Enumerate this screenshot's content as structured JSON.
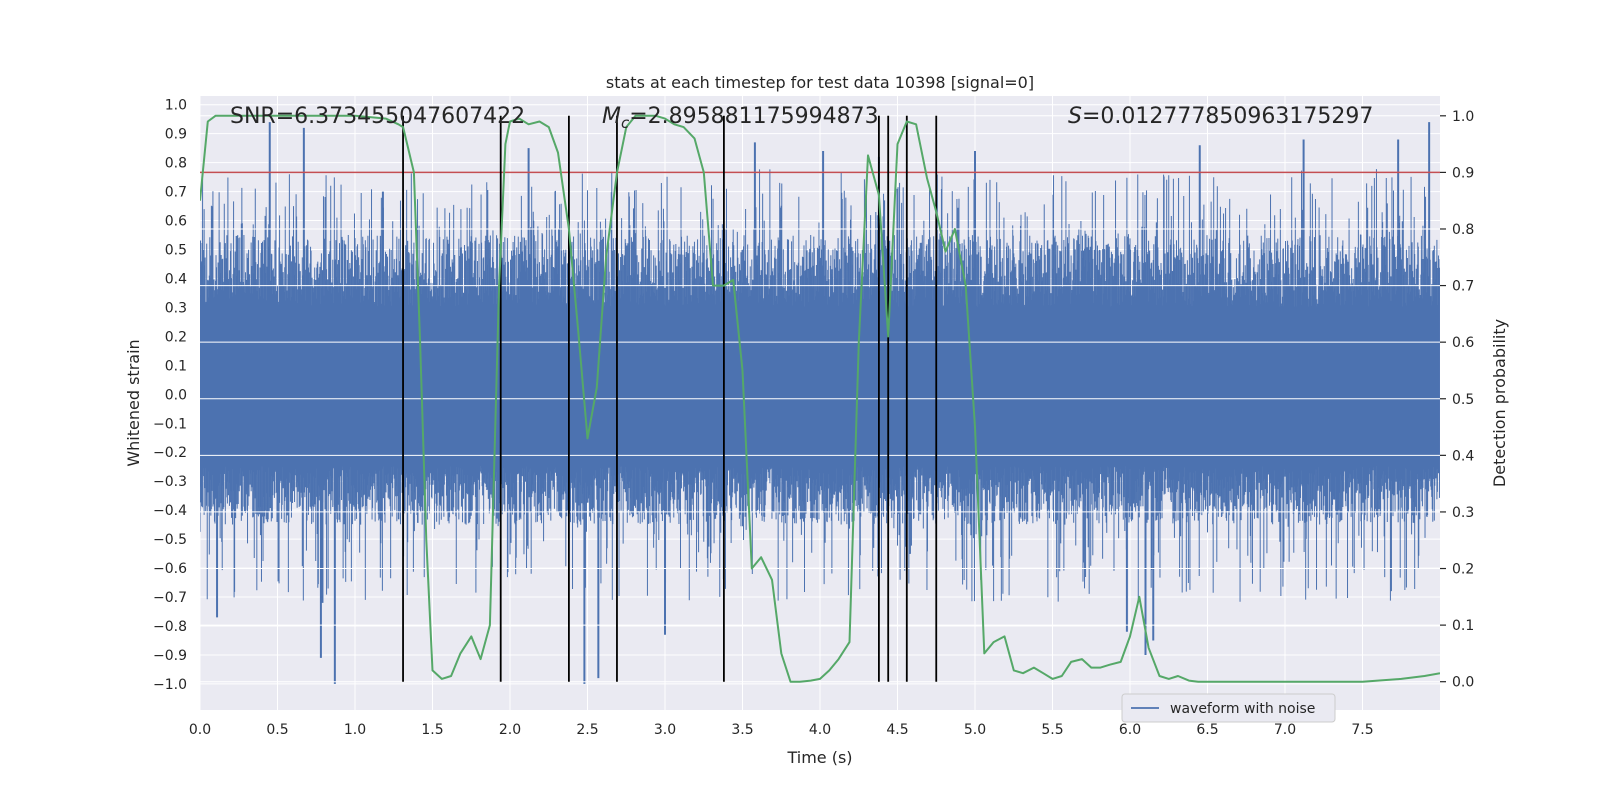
{
  "chart_data": {
    "type": "line",
    "title": "stats at each timestep for test data 10398 [signal=0]",
    "xlabel": "Time (s)",
    "ylabel_left": "Whitened strain",
    "ylabel_right": "Detection probability",
    "xlim": [
      0,
      8
    ],
    "ylim_left": [
      -1.09,
      1.03
    ],
    "ylim_right": [
      -0.05,
      1.035
    ],
    "x_ticks": [
      0,
      0.5,
      1,
      1.5,
      2,
      2.5,
      3,
      3.5,
      4,
      4.5,
      5,
      5.5,
      6,
      6.5,
      7,
      7.5
    ],
    "x_tick_labels": [
      "0.0",
      "0.5",
      "1.0",
      "1.5",
      "2.0",
      "2.5",
      "3.0",
      "3.5",
      "4.0",
      "4.5",
      "5.0",
      "5.5",
      "6.0",
      "6.5",
      "7.0",
      "7.5"
    ],
    "y_left_ticks": [
      1.0,
      0.9,
      0.8,
      0.7,
      0.6,
      0.5,
      0.4,
      0.3,
      0.2,
      0.1,
      0.0,
      -0.1,
      -0.2,
      -0.3,
      -0.4,
      -0.5,
      -0.6,
      -0.7,
      -0.8,
      -0.9,
      -1.0
    ],
    "y_left_tick_labels": [
      "1.0",
      "0.9",
      "0.8",
      "0.7",
      "0.6",
      "0.5",
      "0.4",
      "0.3",
      "0.2",
      "0.1",
      "0.0",
      "−0.1",
      "−0.2",
      "−0.3",
      "−0.4",
      "−0.5",
      "−0.6",
      "−0.7",
      "−0.8",
      "−0.9",
      "−1.0"
    ],
    "y_right_ticks": [
      1.0,
      0.9,
      0.8,
      0.7,
      0.6,
      0.5,
      0.4,
      0.3,
      0.2,
      0.1,
      0.0
    ],
    "y_right_tick_labels": [
      "1.0",
      "0.9",
      "0.8",
      "0.7",
      "0.6",
      "0.5",
      "0.4",
      "0.3",
      "0.2",
      "0.1",
      "0.0"
    ],
    "annotations": {
      "snr_prefix": "SNR=",
      "snr_value": "6.373455047607422",
      "mc_symbol": "M",
      "mc_subscript": "c",
      "mc_eq": "=",
      "mc_value": "2.895881175994873",
      "s_symbol": "S",
      "s_eq": "=",
      "s_value": "0.012777850963175297"
    },
    "threshold_probability": 0.9,
    "vertical_markers": [
      1.31,
      1.94,
      2.38,
      2.69,
      3.38,
      4.38,
      4.44,
      4.56,
      4.75
    ],
    "waveform": {
      "name": "waveform with noise",
      "typical_range": [
        -0.45,
        0.55
      ],
      "min": -1.0,
      "max": 0.95,
      "peaks": [
        {
          "t": 0.45,
          "v": 0.94
        },
        {
          "t": 0.67,
          "v": 0.92
        },
        {
          "t": 2.12,
          "v": 0.85
        },
        {
          "t": 7.93,
          "v": 0.94
        },
        {
          "t": 3.58,
          "v": 0.87
        },
        {
          "t": 4.02,
          "v": 0.84
        },
        {
          "t": 4.38,
          "v": 0.82
        },
        {
          "t": 6.45,
          "v": 0.86
        },
        {
          "t": 7.12,
          "v": 0.88
        },
        {
          "t": 7.73,
          "v": 0.88
        },
        {
          "t": 5.0,
          "v": 0.84
        },
        {
          "t": 1.18,
          "v": 0.7
        }
      ],
      "troughs": [
        {
          "t": 0.87,
          "v": -1.0
        },
        {
          "t": 2.48,
          "v": -1.0
        },
        {
          "t": 2.57,
          "v": -0.98
        },
        {
          "t": 0.78,
          "v": -0.91
        },
        {
          "t": 3.0,
          "v": -0.83
        },
        {
          "t": 6.1,
          "v": -0.9
        },
        {
          "t": 5.98,
          "v": -0.82
        },
        {
          "t": 6.15,
          "v": -0.85
        },
        {
          "t": 0.11,
          "v": -0.77
        },
        {
          "t": 0.79,
          "v": -0.72
        }
      ]
    },
    "series": [
      {
        "name": "detection probability",
        "color": "#55a868",
        "x": [
          0.0,
          0.05,
          0.1,
          0.2,
          0.4,
          0.6,
          0.8,
          1.0,
          1.2,
          1.28,
          1.31,
          1.38,
          1.42,
          1.46,
          1.5,
          1.56,
          1.62,
          1.68,
          1.75,
          1.81,
          1.87,
          1.93,
          1.97,
          2.0,
          2.06,
          2.12,
          2.19,
          2.25,
          2.31,
          2.38,
          2.44,
          2.5,
          2.56,
          2.62,
          2.69,
          2.75,
          2.81,
          2.88,
          2.94,
          3.0,
          3.06,
          3.12,
          3.19,
          3.25,
          3.31,
          3.38,
          3.44,
          3.5,
          3.56,
          3.62,
          3.69,
          3.75,
          3.81,
          3.87,
          3.94,
          4.0,
          4.06,
          4.12,
          4.19,
          4.25,
          4.31,
          4.38,
          4.44,
          4.5,
          4.56,
          4.62,
          4.69,
          4.75,
          4.81,
          4.87,
          4.94,
          5.0,
          5.06,
          5.12,
          5.19,
          5.25,
          5.31,
          5.38,
          5.44,
          5.5,
          5.56,
          5.62,
          5.69,
          5.75,
          5.81,
          5.87,
          5.94,
          6.0,
          6.06,
          6.12,
          6.19,
          6.25,
          6.31,
          6.38,
          6.44,
          6.5,
          6.56,
          6.62,
          6.69,
          6.75,
          6.81,
          6.88,
          6.94,
          7.0,
          7.06,
          7.12,
          7.25,
          7.5,
          7.75,
          7.9,
          8.0
        ],
        "values": [
          0.85,
          0.99,
          1.0,
          1.0,
          1.0,
          1.0,
          1.0,
          1.0,
          0.995,
          0.985,
          0.98,
          0.9,
          0.6,
          0.25,
          0.02,
          0.005,
          0.01,
          0.05,
          0.08,
          0.04,
          0.1,
          0.7,
          0.95,
          0.99,
          0.995,
          0.985,
          0.99,
          0.98,
          0.935,
          0.8,
          0.62,
          0.43,
          0.52,
          0.75,
          0.9,
          0.98,
          1.0,
          1.0,
          1.0,
          0.995,
          0.985,
          0.98,
          0.96,
          0.9,
          0.7,
          0.7,
          0.71,
          0.55,
          0.2,
          0.22,
          0.18,
          0.05,
          0.0,
          0.0,
          0.002,
          0.005,
          0.02,
          0.04,
          0.07,
          0.6,
          0.93,
          0.86,
          0.61,
          0.95,
          0.99,
          0.985,
          0.89,
          0.83,
          0.76,
          0.8,
          0.7,
          0.45,
          0.05,
          0.07,
          0.08,
          0.02,
          0.015,
          0.025,
          0.015,
          0.005,
          0.01,
          0.035,
          0.04,
          0.025,
          0.025,
          0.03,
          0.035,
          0.08,
          0.15,
          0.06,
          0.01,
          0.005,
          0.01,
          0.002,
          0.0,
          0.0,
          0.0,
          0.0,
          0.0,
          0.0,
          0.0,
          0.0,
          0.0,
          0.0,
          0.0,
          0.0,
          0.0,
          0.0,
          0.005,
          0.01,
          0.015
        ]
      }
    ],
    "colors": {
      "waveform": "#4c72b0",
      "probability": "#55a868",
      "threshold": "#c44e52",
      "markers": "#000000",
      "axes_bg": "#eaeaf2",
      "grid": "#ffffff"
    },
    "legend": [
      {
        "label": "waveform with noise",
        "color": "#4c72b0"
      }
    ]
  }
}
